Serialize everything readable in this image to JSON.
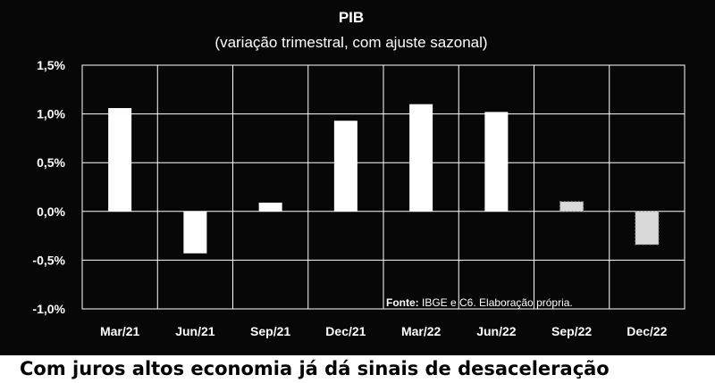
{
  "chart_data": {
    "type": "bar",
    "title": "PIB",
    "subtitle": "(variação trimestral, com ajuste sazonal)",
    "categories": [
      "Mar/21",
      "Jun/21",
      "Sep/21",
      "Dec/21",
      "Mar/22",
      "Jun/22",
      "Sep/22",
      "Dec/22"
    ],
    "values": [
      1.06,
      -0.43,
      0.09,
      0.93,
      1.1,
      1.02,
      0.1,
      -0.34
    ],
    "projected": [
      false,
      false,
      false,
      false,
      false,
      false,
      true,
      true
    ],
    "ylim": [
      -1.0,
      1.5
    ],
    "yticks": [
      1.5,
      1.0,
      0.5,
      0.0,
      -0.5,
      -1.0
    ],
    "ytick_labels": [
      "1,5%",
      "1,0%",
      "0,5%",
      "0,0%",
      "-0,5%",
      "-1,0%"
    ],
    "grid": true,
    "source_label": "Fonte:",
    "source_text": "IBGE e C6. Elaboração própria.",
    "colors": {
      "background": "#070707",
      "bar": "#ffffff",
      "projected_bar": "#d9d9d9",
      "text": "#ffffff",
      "grid": "#ffffff"
    }
  },
  "caption": "Com juros altos economia já dá sinais de desaceleração"
}
